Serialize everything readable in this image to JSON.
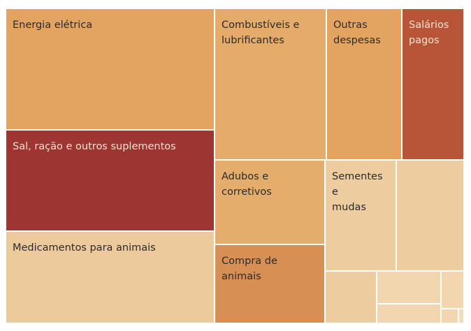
{
  "chart_data": {
    "type": "treemap",
    "title": "",
    "categories": [
      "Energia elétrica",
      "Combustíveis e lubrificantes",
      "Outras despesas",
      "Salários pagos",
      "Sal, ração e outros suplementos",
      "Medicamentos para animais",
      "Adubos e corretivos",
      "Sementes e mudas",
      "Compra de animais",
      "",
      "",
      "",
      "",
      "",
      "",
      ""
    ],
    "labels": [
      "Energia elétrica",
      "Combustíveis e\nlubrificantes",
      "Outras\ndespesas",
      "Salários\npagos",
      "Sal, ração e outros suplementos",
      "Medicamentos para animais",
      "Adubos e\ncorretivos",
      "Sementes e\nmudas",
      "Compra de animais",
      "",
      "",
      "",
      "",
      "",
      "",
      ""
    ],
    "values": [
      5.3,
      3.0,
      1.9,
      1.4,
      4.1,
      4.1,
      1.9,
      1.6,
      1.8,
      1.5,
      0.72,
      0.47,
      0.47,
      0.32,
      0.15,
      0.08
    ],
    "colors": [
      "#e2a460",
      "#e4ab6a",
      "#e2a460",
      "#b85538",
      "#9d3532",
      "#ecca9b",
      "#e5ad6b",
      "#edcc9f",
      "#d88f54",
      "#edcc9f",
      "#edcc9f",
      "#f1d6b0",
      "#f1d6b0",
      "#f1d6b0",
      "#f1d6b0",
      "#f3dcbb"
    ],
    "label_colors": [
      "#2b2b2b",
      "#2b2b2b",
      "#2b2b2b",
      "#f6e3cf",
      "#f6e3cf",
      "#2b2b2b",
      "#2b2b2b",
      "#2b2b2b",
      "#2b2b2b",
      "#2b2b2b",
      "#2b2b2b",
      "#2b2b2b",
      "#2b2b2b",
      "#2b2b2b",
      "#2b2b2b",
      "#2b2b2b"
    ],
    "legend": "none",
    "grid": false
  }
}
